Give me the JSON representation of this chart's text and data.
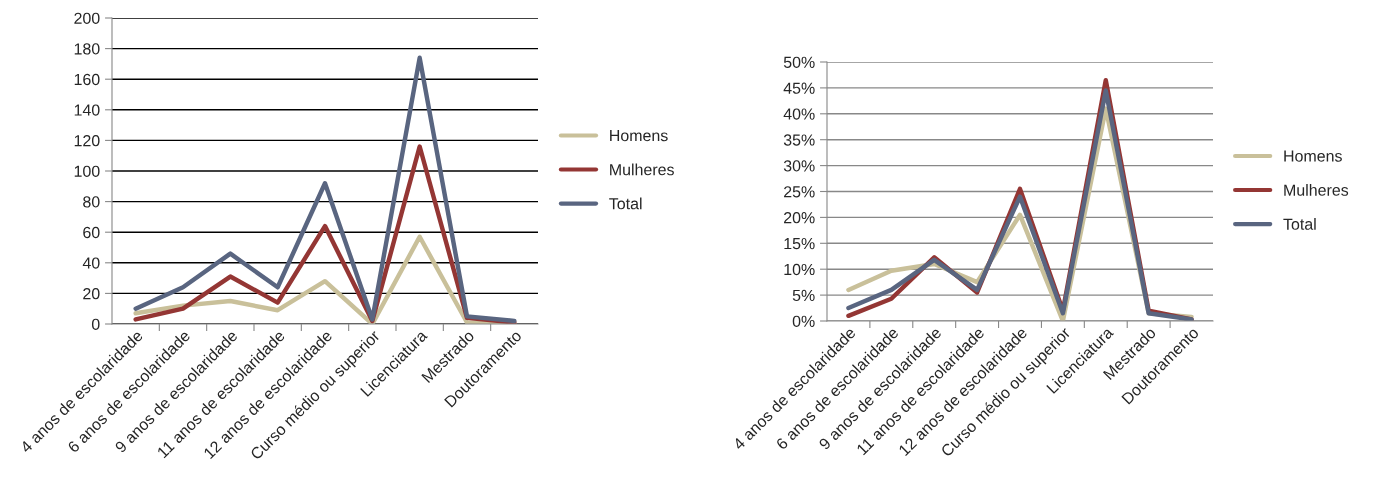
{
  "chart_data": [
    {
      "type": "line",
      "categories": [
        "4 anos de escolaridade",
        "6 anos de escolaridade",
        "9 anos de escolaridade",
        "11 anos de escolaridade",
        "12 anos de escolaridade",
        "Curso médio ou superior",
        "Licenciatura",
        "Mestrado",
        "Doutoramento"
      ],
      "series": [
        {
          "name": "Homens",
          "color": "#c9c09a",
          "values": [
            7,
            12,
            15,
            9,
            28,
            0,
            57,
            1,
            0
          ]
        },
        {
          "name": "Mulheres",
          "color": "#943634",
          "values": [
            3,
            10,
            31,
            14,
            64,
            2,
            116,
            4,
            1
          ]
        },
        {
          "name": "Total",
          "color": "#596580",
          "values": [
            10,
            24,
            46,
            24,
            92,
            3,
            174,
            5,
            2
          ]
        }
      ],
      "ylim": [
        0,
        200
      ],
      "yticks": [
        0,
        20,
        40,
        60,
        80,
        100,
        120,
        140,
        160,
        180,
        200
      ],
      "grid": "y",
      "legend": "right",
      "marker": "none",
      "line_style": "solid"
    },
    {
      "type": "line",
      "categories": [
        "4 anos de escolaridade",
        "6 anos de escolaridade",
        "9 anos de escolaridade",
        "11 anos de escolaridade",
        "12 anos de escolaridade",
        "Curso médio ou superior",
        "Licenciatura",
        "Mestrado",
        "Doutoramento"
      ],
      "series": [
        {
          "name": "Homens",
          "color": "#c9c09a",
          "values": [
            6,
            9.7,
            11,
            7.5,
            20.5,
            0,
            41,
            1.5,
            0.8
          ]
        },
        {
          "name": "Mulheres",
          "color": "#943634",
          "values": [
            1,
            4.3,
            12.3,
            5.5,
            25.5,
            2,
            46.5,
            2,
            0.3
          ]
        },
        {
          "name": "Total",
          "color": "#596580",
          "values": [
            2.5,
            6,
            11.8,
            6,
            24,
            1.5,
            44.5,
            1.5,
            0.3
          ]
        }
      ],
      "ylim": [
        0,
        50
      ],
      "yticks": [
        {
          "value": 0,
          "label": "0%"
        },
        {
          "value": 5,
          "label": "5%"
        },
        {
          "value": 10,
          "label": "10%"
        },
        {
          "value": 15,
          "label": "15%"
        },
        {
          "value": 20,
          "label": "20%"
        },
        {
          "value": 25,
          "label": "25%"
        },
        {
          "value": 30,
          "label": "30%"
        },
        {
          "value": 35,
          "label": "35%"
        },
        {
          "value": 40,
          "label": "40%"
        },
        {
          "value": 45,
          "label": "45%"
        },
        {
          "value": 50,
          "label": "50%"
        }
      ],
      "grid": "y",
      "legend": "right",
      "marker": "none",
      "line_style": "solid"
    }
  ]
}
